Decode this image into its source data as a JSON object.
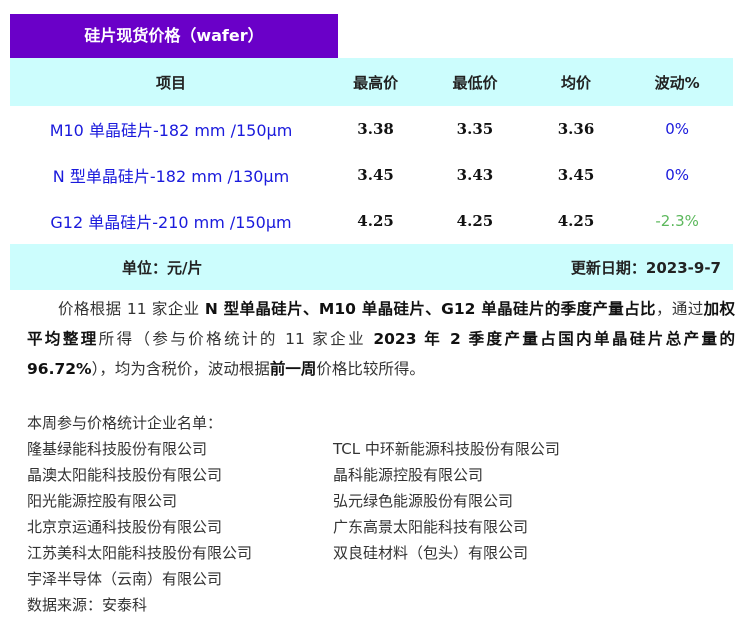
{
  "title": "硅片现货价格（wafer）",
  "table": {
    "headers": [
      "项目",
      "最高价",
      "最低价",
      "均价",
      "波动%"
    ],
    "rows": [
      {
        "name": "M10 单晶硅片-182 mm /150μm",
        "high": "3.38",
        "low": "3.35",
        "avg": "3.36",
        "change": "0%"
      },
      {
        "name": "N 型单晶硅片-182 mm /130μm",
        "high": "3.45",
        "low": "3.43",
        "avg": "3.45",
        "change": "0%"
      },
      {
        "name": "G12 单晶硅片-210 mm /150μm",
        "high": "4.25",
        "low": "4.25",
        "avg": "4.25",
        "change": "-2.3%"
      }
    ],
    "unit": "单位：元/片",
    "updated": "更新日期：2023-9-7"
  },
  "colors": {
    "title_bg": "#6a00c8",
    "table_bg": "#ccfdfd",
    "name_text": "#1a1adc",
    "zero_change": "#1a1adc",
    "negative_change": "#5cb85c"
  },
  "paragraph": [
    {
      "t": "价格根据 11 家企业 ",
      "b": false
    },
    {
      "t": "N 型单晶硅片、M10 单晶硅片、G12 单晶硅片的季度产量占比",
      "b": true
    },
    {
      "t": "，通过",
      "b": false
    },
    {
      "t": "加权平均整理",
      "b": true
    },
    {
      "t": "所得（参与价格统计的 11 家企业 ",
      "b": false
    },
    {
      "t": "2023 年 2 季度产量占国内单晶硅片总产量的 96.72%",
      "b": true
    },
    {
      "t": "），均为含税价，波动根据",
      "b": false
    },
    {
      "t": "前一周",
      "b": true
    },
    {
      "t": "价格比较所得。",
      "b": false
    }
  ],
  "list": {
    "heading": "本周参与价格统计企业名单：",
    "left": [
      "隆基绿能科技股份有限公司",
      "晶澳太阳能科技股份有限公司",
      "阳光能源控股有限公司",
      "北京京运通科技股份有限公司",
      "江苏美科太阳能科技股份有限公司",
      "宇泽半导体（云南）有限公司"
    ],
    "right": [
      "TCL 中环新能源科技股份有限公司",
      "晶科能源控股有限公司",
      "弘元绿色能源股份有限公司",
      "广东高景太阳能科技有限公司",
      "双良硅材料（包头）有限公司"
    ],
    "source": "数据来源：安泰科"
  }
}
